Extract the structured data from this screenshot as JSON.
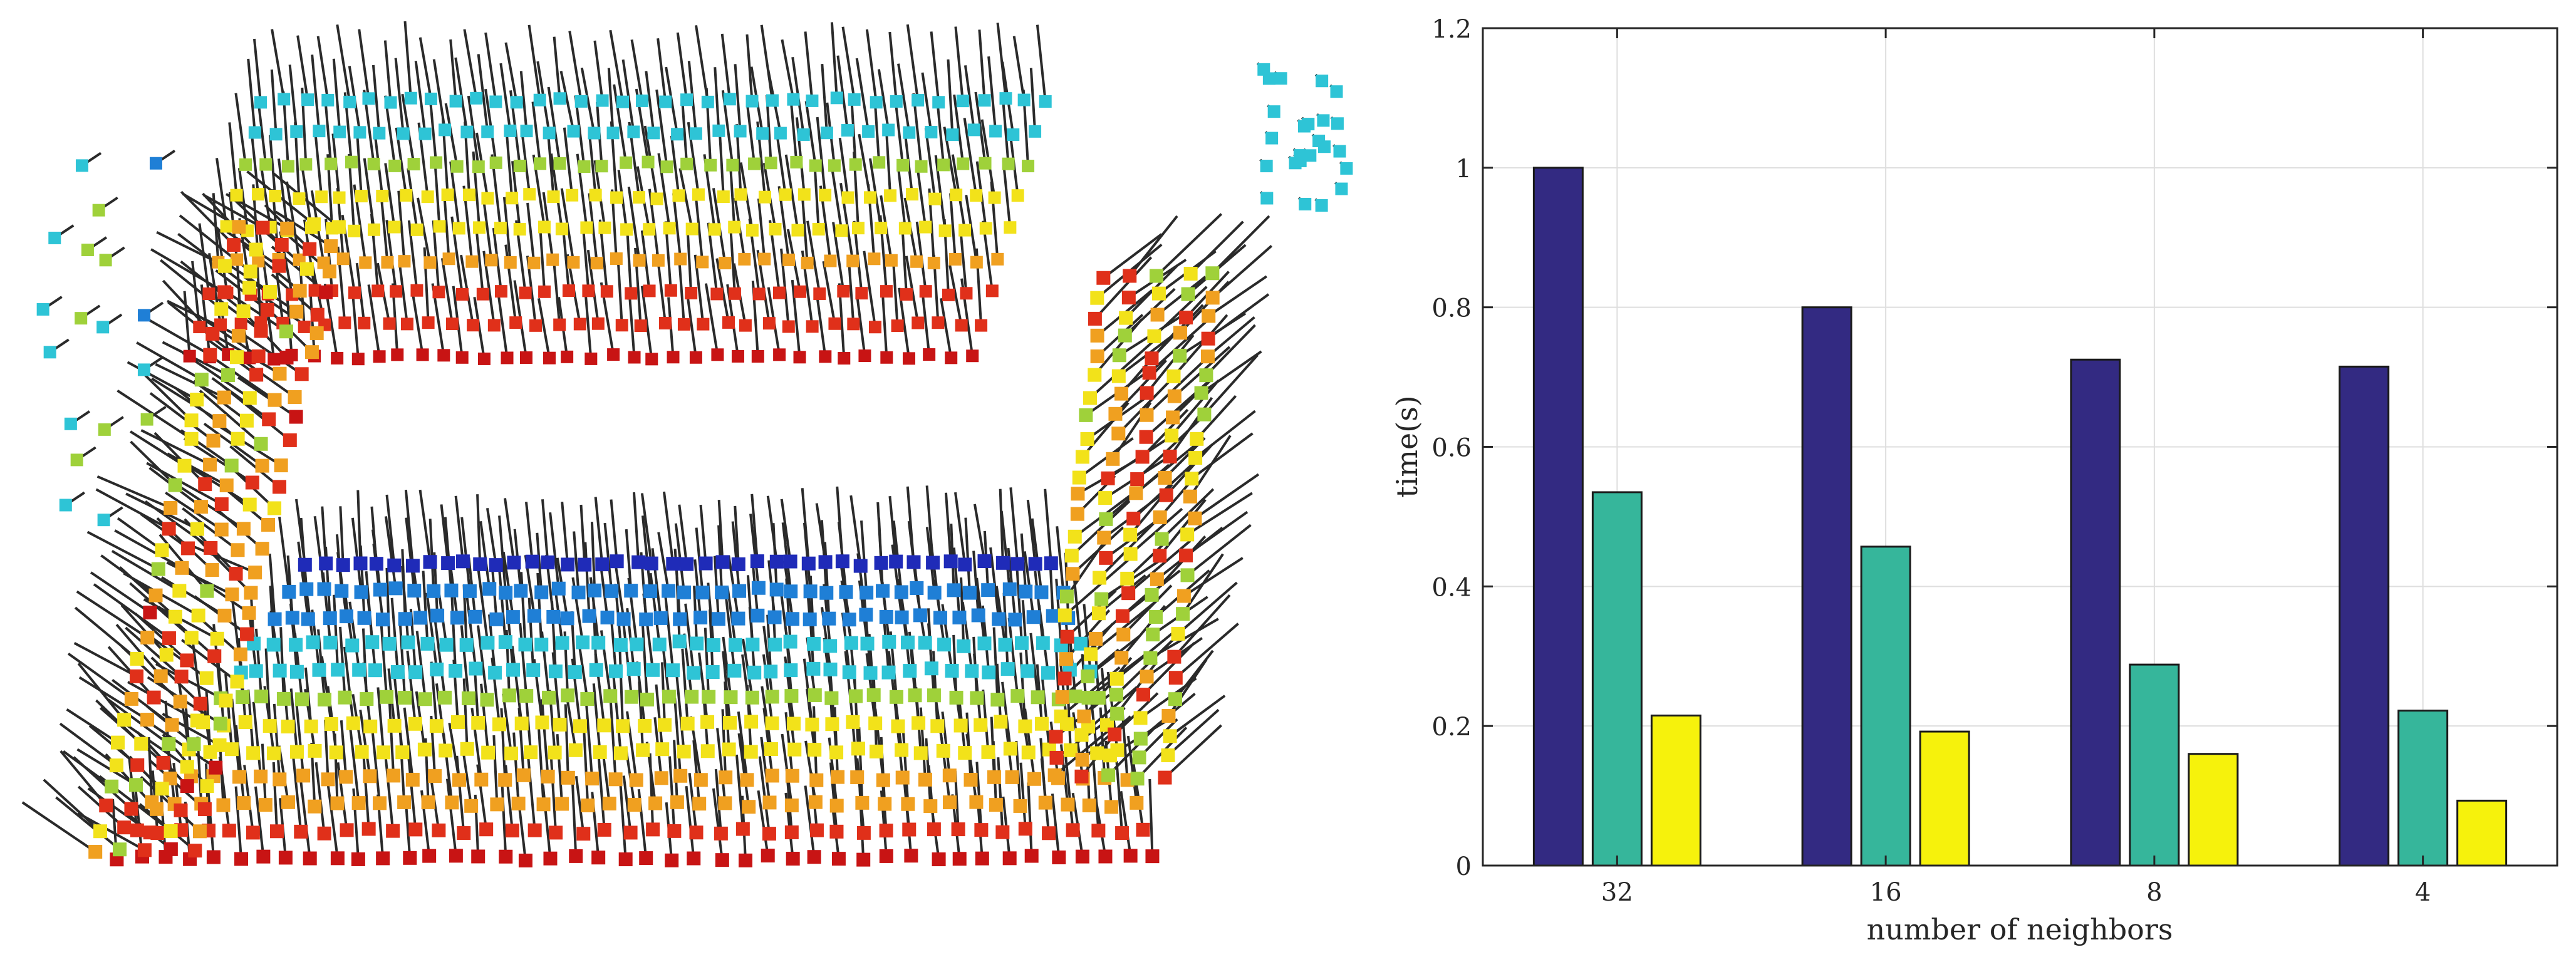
{
  "figure": {
    "left_panel": {
      "kind": "3D point cloud with surface normals",
      "colormap": [
        "#1f2bb8",
        "#1f7fd6",
        "#2ec4d6",
        "#9fd13a",
        "#f2e21a",
        "#f0a020",
        "#e0301a",
        "#c81414"
      ]
    }
  },
  "chart_data": {
    "type": "bar",
    "categories": [
      "32",
      "16",
      "8",
      "4"
    ],
    "series": [
      {
        "values": [
          1.0,
          0.8,
          0.725,
          0.715
        ],
        "color": "#332a82"
      },
      {
        "values": [
          0.535,
          0.457,
          0.288,
          0.222
        ],
        "color": "#36b69b"
      },
      {
        "values": [
          0.215,
          0.192,
          0.16,
          0.093
        ],
        "color": "#f6f20c"
      }
    ],
    "title": "",
    "xlabel": "number of neighbors",
    "ylabel": "time(s)",
    "ylim": [
      0,
      1.2
    ],
    "yticks": [
      "0",
      "0.2",
      "0.4",
      "0.6",
      "0.8",
      "1",
      "1.2"
    ],
    "grid": true,
    "legend": "none"
  }
}
